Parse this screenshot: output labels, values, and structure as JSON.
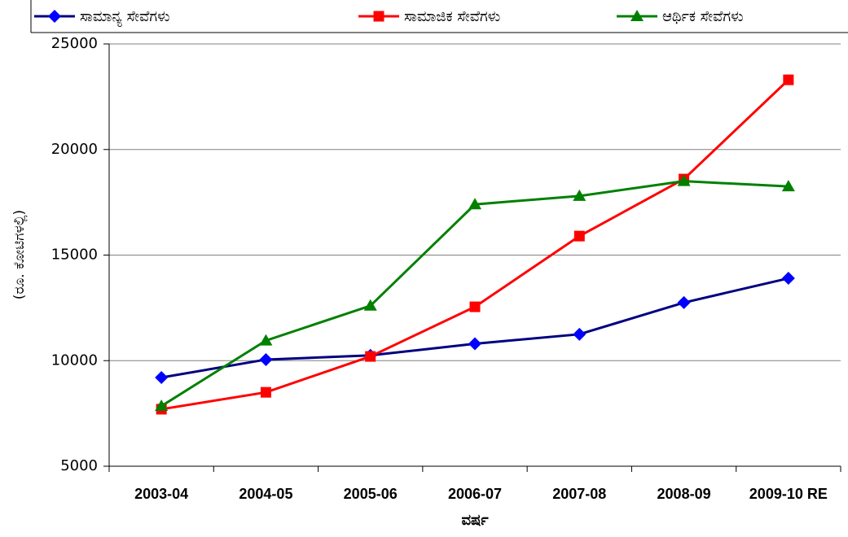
{
  "chart_data": {
    "type": "line",
    "categories": [
      "2003-04",
      "2004-05",
      "2005-06",
      "2006-07",
      "2007-08",
      "2008-09",
      "2009-10 RE"
    ],
    "series": [
      {
        "name": "ಸಾಮಾನ್ಯ ಸೇವೆಗಳು",
        "color": "#000080",
        "marker_color": "#0000ff",
        "marker": "diamond",
        "values": [
          9200,
          10050,
          10250,
          10800,
          11250,
          12750,
          13900
        ]
      },
      {
        "name": "ಸಾಮಾಜಿಕ ಸೇವೆಗಳು",
        "color": "#ff0000",
        "marker_color": "#ff0000",
        "marker": "square",
        "values": [
          7700,
          8500,
          10200,
          12550,
          15900,
          18600,
          23300
        ]
      },
      {
        "name": "ಆರ್ಥಿಕ ಸೇವೆಗಳು",
        "color": "#008000",
        "marker_color": "#008000",
        "marker": "triangle",
        "values": [
          7850,
          10950,
          12600,
          17400,
          17800,
          18500,
          18250
        ]
      }
    ],
    "y_label": "(ರೂ. ಕೋಟಿಗಳಲ್ಲಿ)",
    "x_label": "ವರ್ಷ",
    "ylim": [
      5000,
      25000
    ],
    "yticks": [
      5000,
      10000,
      15000,
      20000,
      25000
    ],
    "grid": true,
    "legend": "top"
  }
}
